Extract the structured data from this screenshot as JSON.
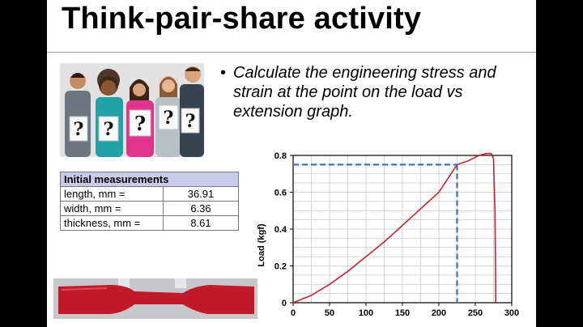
{
  "slide": {
    "title": "Think-pair-share activity",
    "bullet_symbol": "•",
    "bullet_text": "Calculate the engineering stress and strain at the point on the load vs extension graph."
  },
  "photo": {
    "question_marks": [
      "?",
      "?",
      "?",
      "?",
      "?"
    ]
  },
  "measurements": {
    "header": "Initial measurements",
    "rows": [
      {
        "label": "length, mm =",
        "value": "36.91"
      },
      {
        "label": "width, mm =",
        "value": "6.36"
      },
      {
        "label": "thickness, mm =",
        "value": "8.61"
      }
    ]
  },
  "chart_data": {
    "type": "line",
    "ylabel": "Load (kgf)",
    "xlabel": "",
    "xlim": [
      0,
      300
    ],
    "ylim": [
      0,
      0.8
    ],
    "x_ticks": [
      "0",
      "50",
      "100",
      "150",
      "200",
      "250",
      "300"
    ],
    "y_ticks": [
      "0",
      "0.2",
      "0.4",
      "0.6",
      "0.8"
    ],
    "grid": true,
    "series": [
      {
        "color": "#c0272d",
        "x": [
          0,
          25,
          50,
          75,
          100,
          125,
          150,
          175,
          200,
          225,
          240,
          255,
          265,
          272,
          275,
          277,
          278,
          278
        ],
        "y": [
          0.0,
          0.04,
          0.1,
          0.17,
          0.25,
          0.33,
          0.42,
          0.51,
          0.6,
          0.75,
          0.77,
          0.8,
          0.81,
          0.81,
          0.78,
          0.5,
          0.1,
          0.0
        ]
      }
    ],
    "highlight_point": {
      "x": 225,
      "y": 0.75,
      "color": "#3a73c0"
    }
  }
}
